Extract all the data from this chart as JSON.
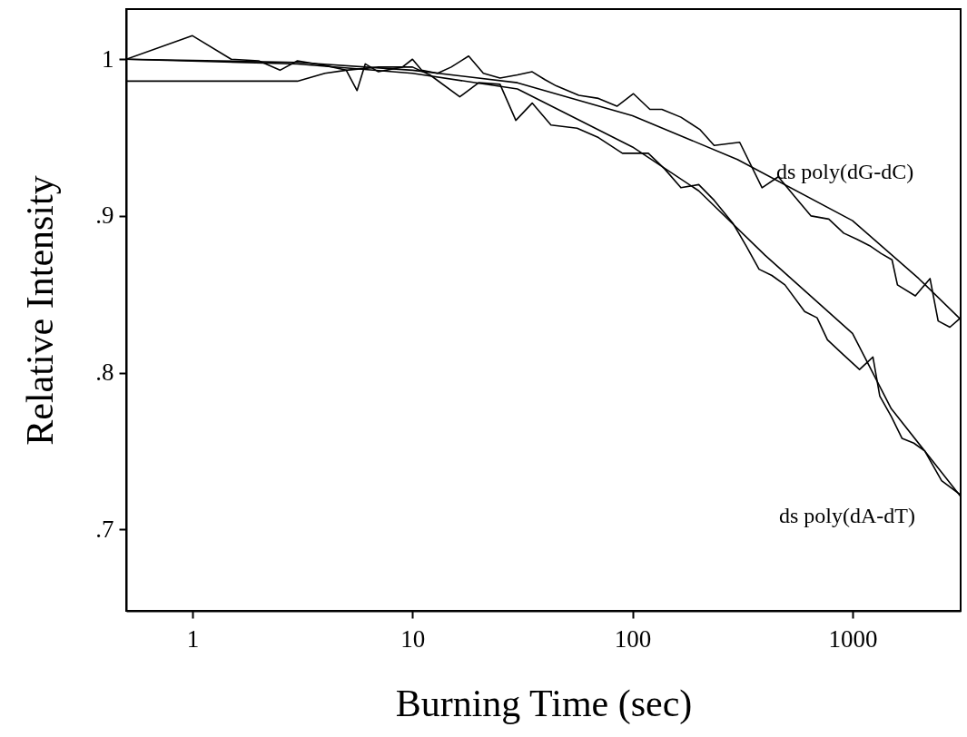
{
  "chart_data": {
    "type": "line",
    "xlabel": "Burning Time (sec)",
    "ylabel": "Relative Intensity",
    "log": "x",
    "xlim": [
      0.5,
      3100
    ],
    "ylim": [
      0.648,
      1.032
    ],
    "xticks": [
      1,
      10,
      100,
      1000
    ],
    "yticks": [
      {
        "value": 0.7,
        "label": ".7"
      },
      {
        "value": 0.8,
        "label": ".8"
      },
      {
        "value": 0.9,
        "label": ".9"
      },
      1
    ],
    "series": [
      {
        "color": "#000000",
        "x": [
          0.5,
          1,
          1.5,
          2,
          2.5,
          3,
          4,
          5,
          5.6,
          6.1,
          7,
          9,
          10,
          11,
          13,
          15,
          18,
          21,
          25,
          30,
          35,
          40,
          45,
          57,
          70,
          85,
          101,
          120,
          136,
          166,
          203,
          235,
          307,
          388,
          460,
          549,
          648,
          780,
          912,
          1050,
          1196,
          1350,
          1512,
          1600,
          1930,
          2250,
          2450,
          2770,
          3100
        ],
        "values": [
          1.0,
          1.015,
          1.0,
          0.999,
          0.993,
          0.999,
          0.996,
          0.993,
          0.98,
          0.997,
          0.992,
          0.995,
          1.0,
          0.993,
          0.991,
          0.995,
          1.002,
          0.991,
          0.988,
          0.99,
          0.992,
          0.987,
          0.983,
          0.977,
          0.975,
          0.97,
          0.978,
          0.968,
          0.968,
          0.963,
          0.955,
          0.945,
          0.947,
          0.918,
          0.925,
          0.912,
          0.9,
          0.898,
          0.889,
          0.885,
          0.881,
          0.876,
          0.872,
          0.856,
          0.849,
          0.86,
          0.833,
          0.829,
          0.835
        ]
      },
      {
        "color": "#000000",
        "x": [
          0.5,
          3,
          4,
          5,
          7,
          10,
          12,
          16.4,
          20,
          25,
          29.5,
          35,
          42.6,
          56,
          70,
          90,
          118,
          140,
          166,
          200,
          235,
          287,
          328,
          376,
          430,
          493,
          606,
          690,
          769,
          900,
          1076,
          1238,
          1330,
          1500,
          1680,
          1900,
          2130,
          2540,
          3100
        ],
        "values": [
          0.986,
          0.986,
          0.991,
          0.993,
          0.995,
          0.995,
          0.99,
          0.976,
          0.985,
          0.984,
          0.961,
          0.972,
          0.958,
          0.956,
          0.95,
          0.94,
          0.94,
          0.93,
          0.918,
          0.92,
          0.91,
          0.895,
          0.881,
          0.866,
          0.862,
          0.856,
          0.839,
          0.835,
          0.821,
          0.812,
          0.802,
          0.81,
          0.785,
          0.772,
          0.758,
          0.755,
          0.75,
          0.731,
          0.722
        ]
      },
      {
        "color": "#000000",
        "x": [
          0.5,
          3,
          10,
          30,
          100,
          300,
          1000,
          2000,
          3100
        ],
        "values": [
          1.0,
          0.998,
          0.993,
          0.985,
          0.964,
          0.936,
          0.897,
          0.86,
          0.834
        ]
      },
      {
        "color": "#000000",
        "x": [
          0.5,
          3,
          10,
          30,
          100,
          200,
          400,
          1000,
          1500,
          3100
        ],
        "values": [
          1.0,
          0.997,
          0.991,
          0.981,
          0.944,
          0.916,
          0.875,
          0.825,
          0.777,
          0.721
        ]
      }
    ],
    "annotations": [
      "ds  poly(dG-dC)",
      "ds  poly(dA-dT)"
    ]
  }
}
